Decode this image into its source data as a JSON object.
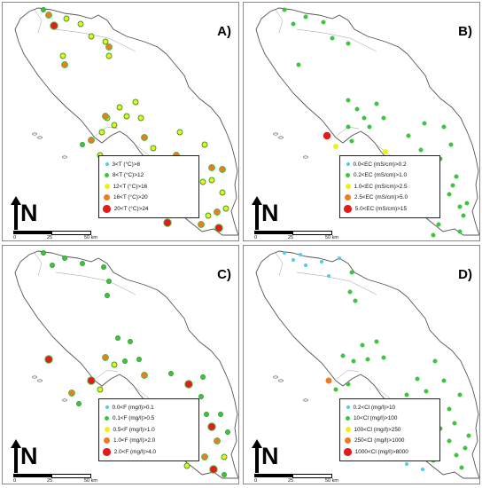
{
  "panels": [
    {
      "id": "A",
      "label": "A)",
      "legend": [
        {
          "text": "3<T (°C)>8",
          "color": "#48d1e8",
          "size": 4
        },
        {
          "text": "8<T (°C)>12",
          "color": "#3ec43e",
          "size": 5
        },
        {
          "text": "12<T (°C)>16",
          "color": "#f0ef1a",
          "size": 6
        },
        {
          "text": "16<T (°C)>20",
          "color": "#ee7a22",
          "size": 7
        },
        {
          "text": "20<T (°C)>24",
          "color": "#e51b1b",
          "size": 8.5
        }
      ]
    },
    {
      "id": "B",
      "label": "B)",
      "legend": [
        {
          "text": "0.0<EC (mS/cm)>0.2",
          "color": "#48d1e8",
          "size": 4
        },
        {
          "text": "0.2<EC (mS/cm)>1.0",
          "color": "#3ec43e",
          "size": 5
        },
        {
          "text": "1.0<EC (mS/cm)>2.5",
          "color": "#f0ef1a",
          "size": 6
        },
        {
          "text": "2.5<EC (mS/cm)>5.0",
          "color": "#ee7a22",
          "size": 7
        },
        {
          "text": "5.0<EC (mS/cm)>15",
          "color": "#e51b1b",
          "size": 8.5
        }
      ]
    },
    {
      "id": "C",
      "label": "C)",
      "legend": [
        {
          "text": "0.0<F (mg/l)>0.1",
          "color": "#48d1e8",
          "size": 4
        },
        {
          "text": "0.1<F (mg/l)>0.5",
          "color": "#3ec43e",
          "size": 5
        },
        {
          "text": "0.5<F (mg/l)>1.0",
          "color": "#f0ef1a",
          "size": 6
        },
        {
          "text": "1.0<F (mg/l)>2.0",
          "color": "#ee7a22",
          "size": 7
        },
        {
          "text": "2.0<F (mg/l)>4.0",
          "color": "#e51b1b",
          "size": 8.5
        }
      ]
    },
    {
      "id": "D",
      "label": "D)",
      "legend": [
        {
          "text": "0.2<Cl (mg/l)>10",
          "color": "#48d1e8",
          "size": 4
        },
        {
          "text": "10<Cl (mg/l)>100",
          "color": "#3ec43e",
          "size": 5
        },
        {
          "text": "100<Cl (mg/l)>250",
          "color": "#f0ef1a",
          "size": 6
        },
        {
          "text": "250<Cl (mg/l)>1000",
          "color": "#ee7a22",
          "size": 7
        },
        {
          "text": "1000<Cl (mg/l)>8000",
          "color": "#e51b1b",
          "size": 8.5
        }
      ]
    }
  ],
  "north_label": "N",
  "scale": {
    "start": "0",
    "mid": "25",
    "end": "50 km"
  },
  "colors": {
    "cyan": "#48d1e8",
    "green": "#3ec43e",
    "yellow": "#f0ef1a",
    "orange": "#ee7a22",
    "red": "#e51b1b",
    "boundary": "#555555"
  }
}
